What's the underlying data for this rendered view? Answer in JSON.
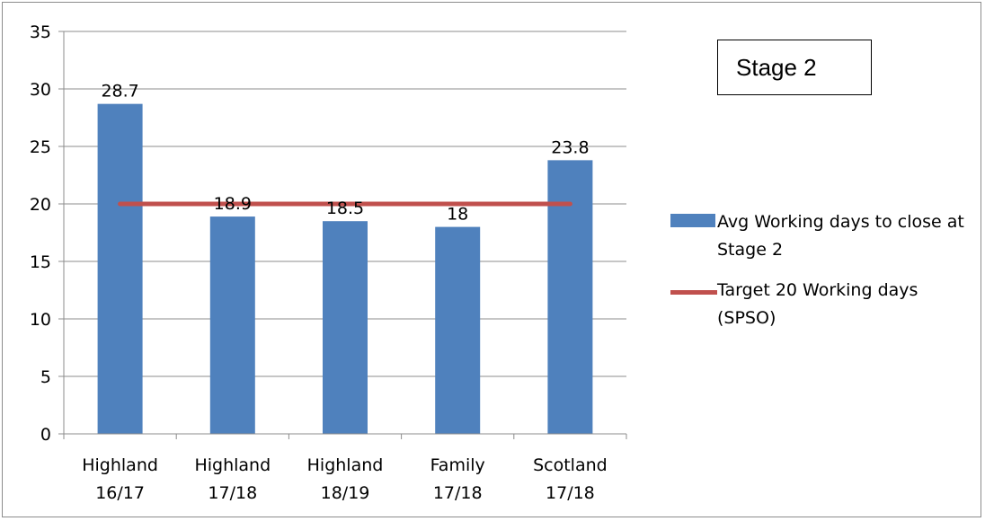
{
  "chart_data": {
    "type": "bar",
    "title": "Stage 2",
    "categories": [
      [
        "Highland",
        "16/17"
      ],
      [
        "Highland",
        "17/18"
      ],
      [
        "Highland",
        "18/19"
      ],
      [
        "Family",
        "17/18"
      ],
      [
        "Scotland",
        "17/18"
      ]
    ],
    "series": [
      {
        "name": "Avg Working days to close at Stage 2",
        "type": "bar",
        "values": [
          28.7,
          18.9,
          18.5,
          18,
          23.8
        ],
        "data_labels": [
          "28.7",
          "18.9",
          "18.5",
          "18",
          "23.8"
        ],
        "color": "#4f81bd"
      },
      {
        "name": "Target 20 Working days (SPSO)",
        "type": "line",
        "values": [
          20,
          20,
          20,
          20,
          20
        ],
        "color": "#c0504d"
      }
    ],
    "ylim": [
      0,
      35
    ],
    "yticks": [
      0,
      5,
      10,
      15,
      20,
      25,
      30,
      35
    ],
    "grid": true,
    "legend_position": "right",
    "xlabel": "",
    "ylabel": ""
  }
}
